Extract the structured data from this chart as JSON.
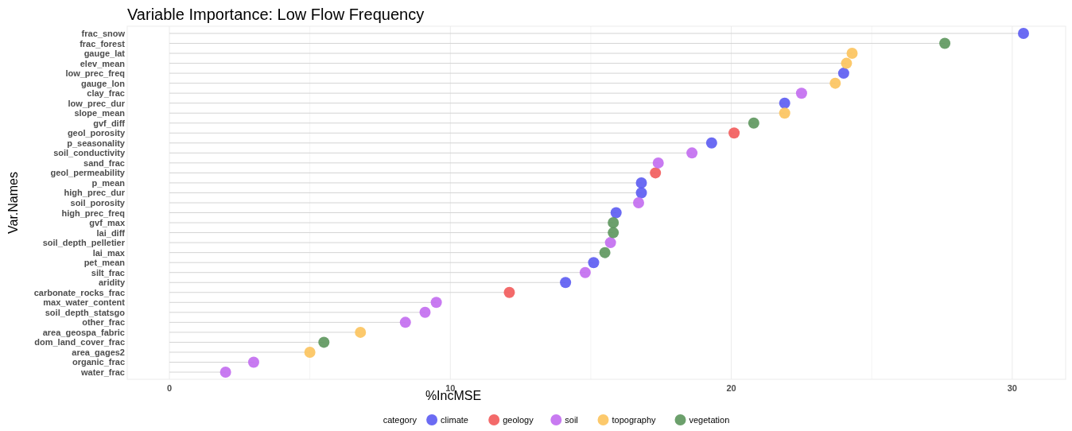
{
  "chart_data": {
    "type": "lollipop",
    "orientation": "horizontal",
    "title": "Variable Importance: Low Flow Frequency",
    "xlabel": "%IncMSE",
    "ylabel": "Var.Names",
    "legend_title": "category",
    "legend": "bottom",
    "grid": "x",
    "marker": "circle",
    "categories": [
      "frac_snow",
      "frac_forest",
      "gauge_lat",
      "elev_mean",
      "low_prec_freq",
      "gauge_lon",
      "clay_frac",
      "low_prec_dur",
      "slope_mean",
      "gvf_diff",
      "geol_porosity",
      "p_seasonality",
      "soil_conductivity",
      "sand_frac",
      "geol_permeability",
      "p_mean",
      "high_prec_dur",
      "soil_porosity",
      "high_prec_freq",
      "gvf_max",
      "lai_diff",
      "soil_depth_pelletier",
      "lai_max",
      "pet_mean",
      "silt_frac",
      "aridity",
      "carbonate_rocks_frac",
      "max_water_content",
      "soil_depth_statsgo",
      "other_frac",
      "area_geospa_fabric",
      "dom_land_cover_frac",
      "area_gages2",
      "organic_frac",
      "water_frac"
    ],
    "xlim": [
      -1.5,
      31.9
    ],
    "xticks": [
      0,
      {
        "value": 5,
        "label": null
      },
      10,
      {
        "value": 15,
        "label": null
      },
      20,
      {
        "value": 25,
        "label": null
      },
      30
    ],
    "series": [
      {
        "name": "climate",
        "color": "#5b5bf2",
        "values": [
          30.4,
          null,
          null,
          null,
          24.0,
          null,
          null,
          21.9,
          null,
          null,
          null,
          19.3,
          null,
          null,
          null,
          16.8,
          16.8,
          null,
          15.9,
          null,
          null,
          null,
          null,
          15.1,
          null,
          14.1,
          null,
          null,
          null,
          null,
          null,
          null,
          null,
          null,
          null
        ]
      },
      {
        "name": "geology",
        "color": "#f25a5a",
        "values": [
          null,
          null,
          null,
          null,
          null,
          null,
          null,
          null,
          null,
          null,
          20.1,
          null,
          null,
          null,
          17.3,
          null,
          null,
          null,
          null,
          null,
          null,
          null,
          null,
          null,
          null,
          null,
          12.1,
          null,
          null,
          null,
          null,
          null,
          null,
          null,
          null
        ]
      },
      {
        "name": "soil",
        "color": "#c26cf0",
        "values": [
          null,
          null,
          null,
          null,
          null,
          null,
          22.5,
          null,
          null,
          null,
          null,
          null,
          18.6,
          17.4,
          null,
          null,
          null,
          16.7,
          null,
          null,
          null,
          15.7,
          null,
          null,
          14.8,
          null,
          null,
          9.5,
          9.1,
          8.4,
          null,
          null,
          null,
          3.0,
          2.0
        ]
      },
      {
        "name": "topography",
        "color": "#fcc35c",
        "values": [
          null,
          null,
          24.3,
          24.1,
          null,
          23.7,
          null,
          null,
          21.9,
          null,
          null,
          null,
          null,
          null,
          null,
          null,
          null,
          null,
          null,
          null,
          null,
          null,
          null,
          null,
          null,
          null,
          null,
          null,
          null,
          null,
          6.8,
          null,
          5.0,
          null,
          null
        ]
      },
      {
        "name": "vegetation",
        "color": "#5c965c",
        "values": [
          null,
          27.6,
          null,
          null,
          null,
          null,
          null,
          null,
          null,
          20.8,
          null,
          null,
          null,
          null,
          null,
          null,
          null,
          null,
          null,
          15.8,
          15.8,
          null,
          15.5,
          null,
          null,
          null,
          null,
          null,
          null,
          null,
          null,
          5.5,
          null,
          null,
          null
        ]
      }
    ]
  }
}
